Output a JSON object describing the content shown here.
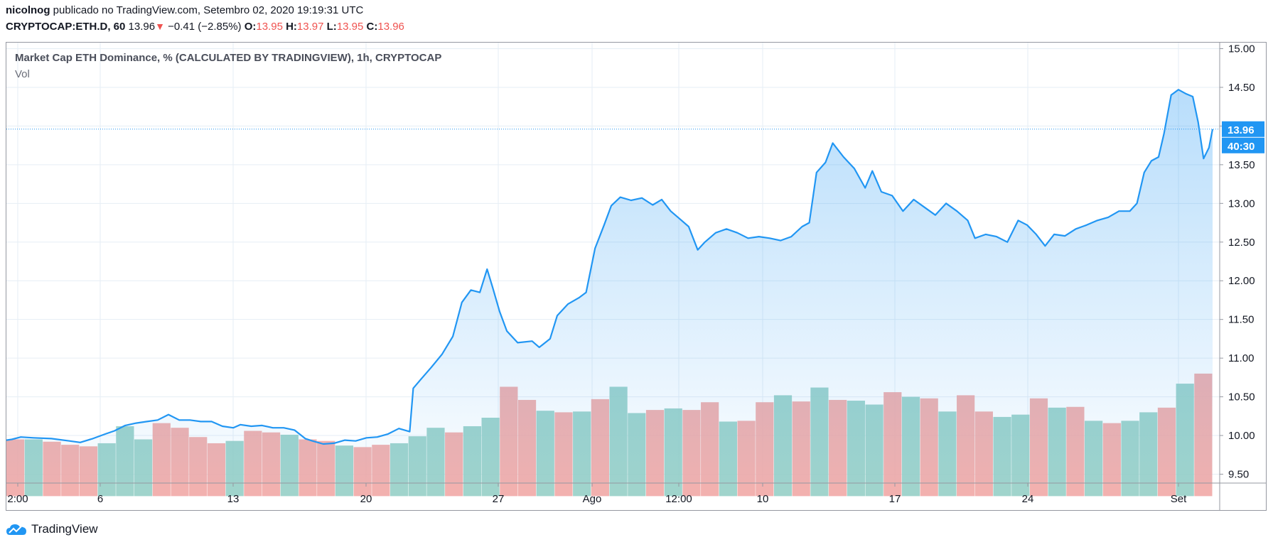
{
  "header": {
    "author": "nicolnog",
    "published_text": "publicado no TradingView.com, Setembro 02, 2020 19:19:31 UTC",
    "symbol": "CRYPTOCAP:ETH.D, 60",
    "last": "13.96",
    "change": "−0.41 (−2.85%)",
    "o_label": "O:",
    "o_value": "13.95",
    "h_label": "H:",
    "h_value": "13.97",
    "l_label": "L:",
    "l_value": "13.95",
    "c_label": "C:",
    "c_value": "13.96"
  },
  "legend": {
    "title": "Market Cap ETH Dominance, % (CALCULATED BY TRADINGVIEW), 1h, CRYPTOCAP",
    "vol": "Vol"
  },
  "price_tag": {
    "price": "13.96",
    "countdown": "40:30"
  },
  "brand": {
    "name": "TradingView"
  },
  "colors": {
    "line": "#2196f3",
    "vol_up": "#8fcdc3",
    "vol_down": "#f0a3a1",
    "grid": "#e6eef5",
    "tag": "#2196f3"
  },
  "chart_data": {
    "type": "area",
    "x_ticks": [
      "2:00",
      "6",
      "13",
      "20",
      "27",
      "Ago",
      "12:00",
      "10",
      "17",
      "24",
      "Set"
    ],
    "y_ticks": [
      "15.00",
      "14.50",
      "14.00",
      "13.50",
      "13.00",
      "12.50",
      "12.00",
      "11.50",
      "11.00",
      "10.50",
      "10.00",
      "9.50"
    ],
    "ylim": [
      9.5,
      15.0
    ],
    "grid": true,
    "series": [
      {
        "values": [
          [
            0,
            9.94
          ],
          [
            0.3,
            9.95
          ],
          [
            0.8,
            9.98
          ],
          [
            1.5,
            9.97
          ],
          [
            2.5,
            9.96
          ],
          [
            3.5,
            9.93
          ],
          [
            4.1,
            9.91
          ],
          [
            4.8,
            9.96
          ],
          [
            5.5,
            10.02
          ],
          [
            6.0,
            10.06
          ],
          [
            6.6,
            10.13
          ],
          [
            7.2,
            10.16
          ],
          [
            7.8,
            10.18
          ],
          [
            8.4,
            10.2
          ],
          [
            9.0,
            10.27
          ],
          [
            9.6,
            10.2
          ],
          [
            10.2,
            10.2
          ],
          [
            10.8,
            10.18
          ],
          [
            11.4,
            10.18
          ],
          [
            12.0,
            10.12
          ],
          [
            12.6,
            10.1
          ],
          [
            13.0,
            10.14
          ],
          [
            13.6,
            10.12
          ],
          [
            14.2,
            10.13
          ],
          [
            14.8,
            10.1
          ],
          [
            15.4,
            10.1
          ],
          [
            16.0,
            10.07
          ],
          [
            16.6,
            9.96
          ],
          [
            17.0,
            9.93
          ],
          [
            17.6,
            9.89
          ],
          [
            18.2,
            9.9
          ],
          [
            18.8,
            9.94
          ],
          [
            19.4,
            9.93
          ],
          [
            20.0,
            9.97
          ],
          [
            20.6,
            9.98
          ],
          [
            21.2,
            10.02
          ],
          [
            21.8,
            10.09
          ],
          [
            22.4,
            10.05
          ],
          [
            22.6,
            10.61
          ],
          [
            23.0,
            10.72
          ],
          [
            23.6,
            10.88
          ],
          [
            24.2,
            11.05
          ],
          [
            24.8,
            11.28
          ],
          [
            25.3,
            11.72
          ],
          [
            25.8,
            11.88
          ],
          [
            26.3,
            11.85
          ],
          [
            26.7,
            12.15
          ],
          [
            27.0,
            11.92
          ],
          [
            27.4,
            11.6
          ],
          [
            27.8,
            11.35
          ],
          [
            28.4,
            11.2
          ],
          [
            29.2,
            11.22
          ],
          [
            29.6,
            11.14
          ],
          [
            30.2,
            11.25
          ],
          [
            30.6,
            11.55
          ],
          [
            31.2,
            11.7
          ],
          [
            31.8,
            11.78
          ],
          [
            32.2,
            11.85
          ],
          [
            32.7,
            12.42
          ],
          [
            33.2,
            12.72
          ],
          [
            33.6,
            12.97
          ],
          [
            34.1,
            13.08
          ],
          [
            34.7,
            13.04
          ],
          [
            35.3,
            13.07
          ],
          [
            35.9,
            12.98
          ],
          [
            36.4,
            13.05
          ],
          [
            36.9,
            12.9
          ],
          [
            37.4,
            12.8
          ],
          [
            37.9,
            12.7
          ],
          [
            38.4,
            12.4
          ],
          [
            38.8,
            12.5
          ],
          [
            39.4,
            12.62
          ],
          [
            40.0,
            12.67
          ],
          [
            40.6,
            12.62
          ],
          [
            41.2,
            12.55
          ],
          [
            41.8,
            12.57
          ],
          [
            42.4,
            12.55
          ],
          [
            43.0,
            12.52
          ],
          [
            43.6,
            12.57
          ],
          [
            44.2,
            12.7
          ],
          [
            44.6,
            12.75
          ],
          [
            45.0,
            13.4
          ],
          [
            45.5,
            13.53
          ],
          [
            45.9,
            13.78
          ],
          [
            46.5,
            13.6
          ],
          [
            47.1,
            13.45
          ],
          [
            47.7,
            13.2
          ],
          [
            48.1,
            13.42
          ],
          [
            48.6,
            13.15
          ],
          [
            49.2,
            13.1
          ],
          [
            49.8,
            12.9
          ],
          [
            50.4,
            13.05
          ],
          [
            51.0,
            12.95
          ],
          [
            51.6,
            12.85
          ],
          [
            52.2,
            13.0
          ],
          [
            52.8,
            12.9
          ],
          [
            53.4,
            12.78
          ],
          [
            53.8,
            12.55
          ],
          [
            54.4,
            12.6
          ],
          [
            55.0,
            12.57
          ],
          [
            55.6,
            12.5
          ],
          [
            56.2,
            12.78
          ],
          [
            56.7,
            12.72
          ],
          [
            57.2,
            12.6
          ],
          [
            57.7,
            12.45
          ],
          [
            58.2,
            12.6
          ],
          [
            58.8,
            12.58
          ],
          [
            59.4,
            12.67
          ],
          [
            60.0,
            12.72
          ],
          [
            60.6,
            12.78
          ],
          [
            61.2,
            12.82
          ],
          [
            61.8,
            12.9
          ],
          [
            62.4,
            12.9
          ],
          [
            62.8,
            13.0
          ],
          [
            63.2,
            13.4
          ],
          [
            63.6,
            13.55
          ],
          [
            64.0,
            13.6
          ],
          [
            64.3,
            13.9
          ],
          [
            64.7,
            14.4
          ],
          [
            65.1,
            14.47
          ],
          [
            65.5,
            14.42
          ],
          [
            65.9,
            14.38
          ],
          [
            66.2,
            14.05
          ],
          [
            66.5,
            13.58
          ],
          [
            66.8,
            13.72
          ],
          [
            67.0,
            13.96
          ]
        ]
      }
    ],
    "volume_bars": [
      [
        0,
        9.95,
        "d"
      ],
      [
        1,
        9.95,
        "u"
      ],
      [
        2,
        9.92,
        "d"
      ],
      [
        3,
        9.88,
        "d"
      ],
      [
        4,
        9.86,
        "d"
      ],
      [
        5,
        9.9,
        "u"
      ],
      [
        6,
        10.12,
        "u"
      ],
      [
        7,
        9.95,
        "u"
      ],
      [
        8,
        10.16,
        "d"
      ],
      [
        9,
        10.1,
        "d"
      ],
      [
        10,
        9.98,
        "d"
      ],
      [
        11,
        9.9,
        "d"
      ],
      [
        12,
        9.93,
        "u"
      ],
      [
        13,
        10.06,
        "d"
      ],
      [
        14,
        10.04,
        "d"
      ],
      [
        15,
        10.01,
        "u"
      ],
      [
        16,
        9.95,
        "d"
      ],
      [
        17,
        9.93,
        "d"
      ],
      [
        18,
        9.87,
        "u"
      ],
      [
        19,
        9.85,
        "d"
      ],
      [
        20,
        9.88,
        "d"
      ],
      [
        21,
        9.9,
        "u"
      ],
      [
        22,
        9.99,
        "u"
      ],
      [
        23,
        10.1,
        "u"
      ],
      [
        24,
        10.04,
        "d"
      ],
      [
        25,
        10.12,
        "u"
      ],
      [
        26,
        10.23,
        "u"
      ],
      [
        27,
        10.63,
        "d"
      ],
      [
        28,
        10.46,
        "d"
      ],
      [
        29,
        10.32,
        "u"
      ],
      [
        30,
        10.3,
        "d"
      ],
      [
        31,
        10.31,
        "u"
      ],
      [
        32,
        10.47,
        "d"
      ],
      [
        33,
        10.63,
        "u"
      ],
      [
        34,
        10.29,
        "u"
      ],
      [
        35,
        10.33,
        "d"
      ],
      [
        36,
        10.35,
        "u"
      ],
      [
        37,
        10.33,
        "d"
      ],
      [
        38,
        10.43,
        "d"
      ],
      [
        39,
        10.18,
        "u"
      ],
      [
        40,
        10.19,
        "d"
      ],
      [
        41,
        10.43,
        "d"
      ],
      [
        42,
        10.52,
        "u"
      ],
      [
        43,
        10.44,
        "d"
      ],
      [
        44,
        10.62,
        "u"
      ],
      [
        45,
        10.46,
        "d"
      ],
      [
        46,
        10.45,
        "u"
      ],
      [
        47,
        10.4,
        "u"
      ],
      [
        48,
        10.56,
        "d"
      ],
      [
        49,
        10.5,
        "u"
      ],
      [
        50,
        10.48,
        "d"
      ],
      [
        51,
        10.31,
        "u"
      ],
      [
        52,
        10.52,
        "d"
      ],
      [
        53,
        10.31,
        "d"
      ],
      [
        54,
        10.24,
        "u"
      ],
      [
        55,
        10.27,
        "u"
      ],
      [
        56,
        10.48,
        "d"
      ],
      [
        57,
        10.36,
        "u"
      ],
      [
        58,
        10.37,
        "d"
      ],
      [
        59,
        10.19,
        "u"
      ],
      [
        60,
        10.16,
        "d"
      ],
      [
        61,
        10.19,
        "u"
      ],
      [
        62,
        10.3,
        "u"
      ],
      [
        63,
        10.36,
        "d"
      ],
      [
        64,
        10.67,
        "u"
      ],
      [
        65,
        10.8,
        "d"
      ]
    ]
  }
}
